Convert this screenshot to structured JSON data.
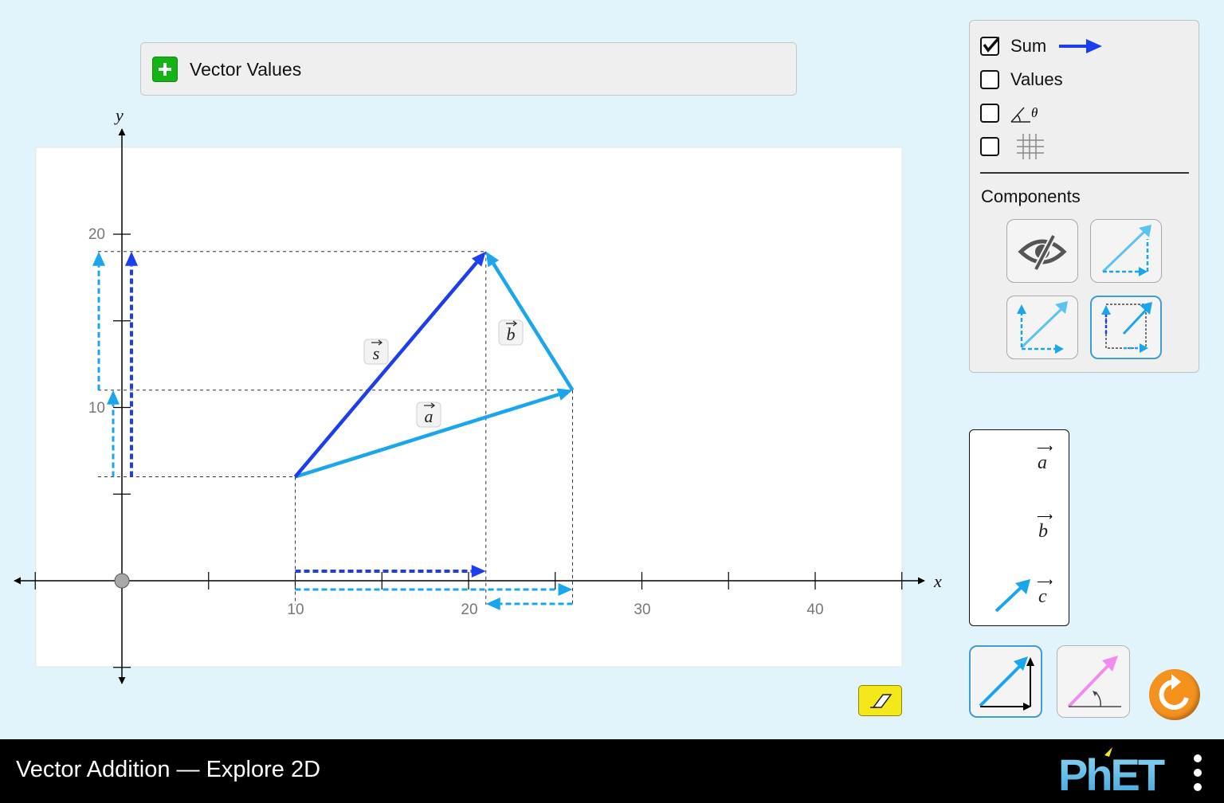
{
  "vector_values_panel": {
    "title": "Vector Values"
  },
  "graph": {
    "x_axis_label": "x",
    "y_axis_label": "y",
    "x_tick_labels": [
      "10",
      "20",
      "30",
      "40"
    ],
    "y_tick_labels": [
      "10",
      "20"
    ],
    "vectors": [
      {
        "symbol": "s",
        "tail": [
          10,
          6
        ],
        "tip": [
          21,
          19
        ],
        "color": "#1a3ef0"
      },
      {
        "symbol": "a",
        "tail": [
          10,
          6
        ],
        "tip": [
          26,
          11
        ],
        "color": "#19a6ec"
      },
      {
        "symbol": "b",
        "tail": [
          26,
          11
        ],
        "tip": [
          21,
          19
        ],
        "color": "#19a6ec"
      }
    ]
  },
  "controls": {
    "sum_label": "Sum",
    "sum_checked": true,
    "values_label": "Values",
    "values_checked": false,
    "angle_checked": false,
    "angle_symbol": "θ",
    "grid_checked": false,
    "components_label": "Components",
    "component_styles": [
      "invisible",
      "triangle",
      "parallelogram",
      "on-axis"
    ],
    "selected_component_style": "on-axis"
  },
  "toolbox": {
    "symbols": [
      "a",
      "b",
      "c"
    ]
  },
  "modes": {
    "selected": "cartesian",
    "options": [
      "cartesian",
      "polar"
    ]
  },
  "footer": {
    "title": "Vector Addition — Explore 2D",
    "brand": "PhET"
  },
  "colors": {
    "sum": "#1a3ef0",
    "vector": "#19a6ec",
    "polar_vector": "#f08cf0",
    "background": "#e1f3fb",
    "reset": "#f5921e",
    "eraser": "#f4e81a"
  }
}
